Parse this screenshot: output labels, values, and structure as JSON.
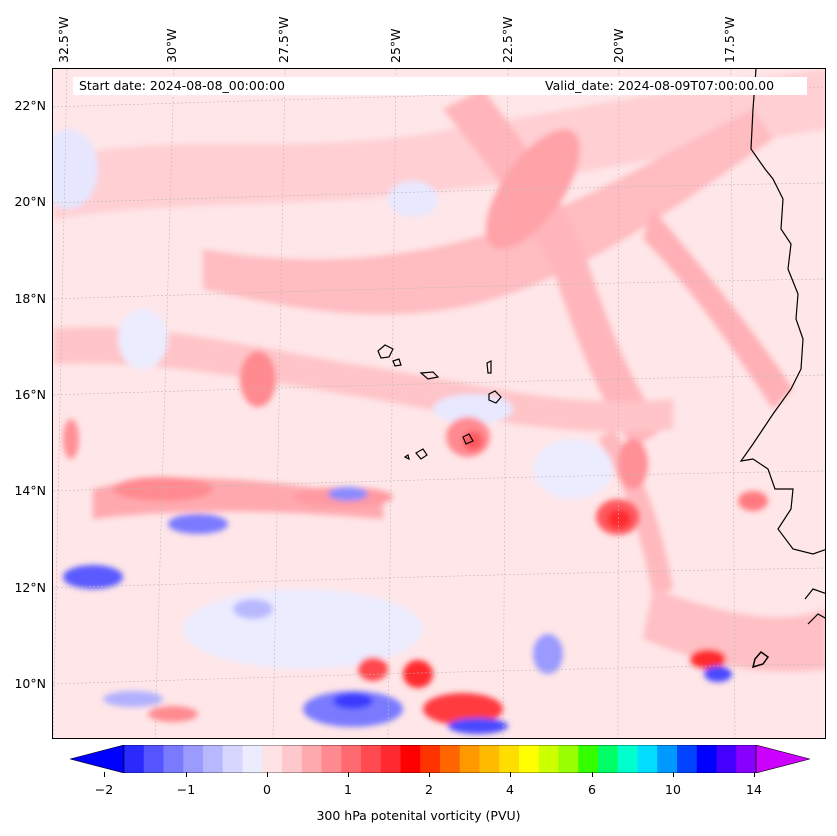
{
  "map": {
    "info": {
      "start": "Start date: 2024-08-08_00:00:00",
      "valid": "Valid_date: 2024-08-09T07:00:00.00"
    },
    "lon_labels": [
      "32.5°W",
      "30°W",
      "27.5°W",
      "25°W",
      "22.5°W",
      "20°W",
      "17.5°W"
    ],
    "lat_labels": [
      "22°N",
      "20°N",
      "18°N",
      "16°N",
      "14°N",
      "12°N",
      "10°N"
    ]
  },
  "colorbar": {
    "label": "300 hPa potenital vorticity (PVU)",
    "ticks": [
      "−2",
      "−1",
      "0",
      "1",
      "2",
      "4",
      "6",
      "10",
      "14"
    ],
    "colors": [
      "#0000ff",
      "#2a2aff",
      "#5555ff",
      "#7a7aff",
      "#9a9aff",
      "#b8b8ff",
      "#d6d6ff",
      "#ececff",
      "#ffe2e4",
      "#ffc8cc",
      "#ffaaaf",
      "#ff8a90",
      "#ff6a70",
      "#ff4a50",
      "#ff2a2f",
      "#ff0000",
      "#ff3300",
      "#ff6600",
      "#ff9900",
      "#ffbb00",
      "#ffdd00",
      "#ffff00",
      "#ccff00",
      "#99ff00",
      "#33ff00",
      "#00ff66",
      "#00ffcc",
      "#00ddff",
      "#0099ff",
      "#0044ff",
      "#0000ff",
      "#4400ff",
      "#8800ff",
      "#cc00ff"
    ]
  }
}
